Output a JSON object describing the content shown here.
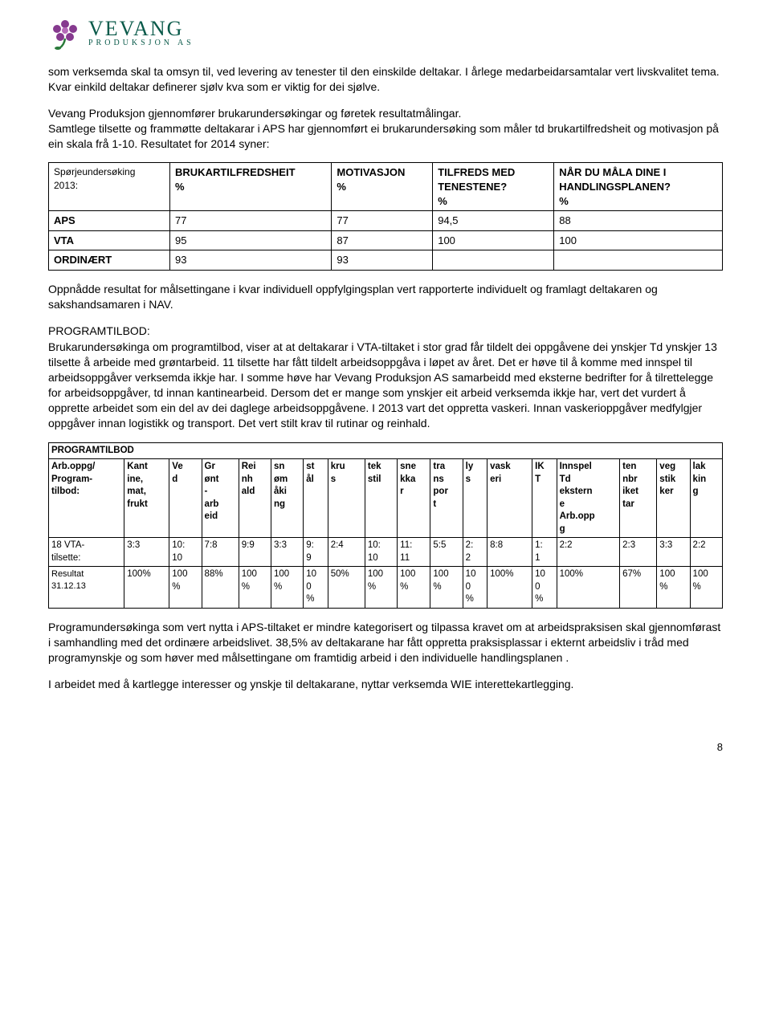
{
  "logo": {
    "main": "VEVANG",
    "sub": "PRODUKSJON AS",
    "flower_color": "#863a8f",
    "leaf_color": "#2a7a3a",
    "text_color": "#0a5a4a"
  },
  "paragraphs": {
    "p1": "som verksemda skal ta omsyn til, ved levering av tenester til den einskilde deltakar. I årlege medarbeidarsamtalar vert livskvalitet tema. Kvar einkild deltakar definerer sjølv kva som er viktig for dei sjølve.",
    "p2": "Vevang Produksjon gjennomfører brukarundersøkingar og føretek resultatmålingar.\nSamtlege tilsette og frammøtte deltakarar i APS har gjennomført ei brukarundersøking som måler td brukartilfredsheit og motivasjon på ein skala frå 1-10. Resultatet for 2014 syner:",
    "p3": "Oppnådde resultat for målsettingane i kvar individuell oppfylgingsplan vert rapporterte individuelt og framlagt deltakaren og sakshandsamaren i NAV.",
    "p4_heading": "PROGRAMTILBOD:",
    "p4": "Brukarundersøkinga om programtilbod, viser at at deltakarar i VTA-tiltaket i stor grad får tildelt dei oppgåvene dei ynskjer Td ynskjer 13 tilsette å arbeide med grøntarbeid. 11 tilsette har fått tildelt arbeidsoppgåva i løpet av året. Det er høve til å komme med innspel til arbeidsoppgåver verksemda ikkje har. I somme høve har Vevang Produksjon AS samarbeidd med eksterne bedrifter for å tilrettelegge for arbeidsoppgåver, td innan kantinearbeid. Dersom det er mange som ynskjer eit arbeid verksemda ikkje har, vert det vurdert å opprette arbeidet som ein del av dei daglege arbeidsoppgåvene. I 2013 vart det oppretta vaskeri. Innan vaskerioppgåver medfylgjer oppgåver innan logistikk og transport. Det vert stilt krav til rutinar og reinhald.",
    "p5": "Programundersøkinga som vert nytta i APS-tiltaket er mindre kategorisert og tilpassa kravet om at arbeidspraksisen skal gjennomførast i samhandling med det ordinære arbeidslivet. 38,5% av deltakarane har fått oppretta praksisplassar i ekternt arbeidsliv i tråd med programynskje og som høver med målsettingane om framtidig arbeid i den individuelle handlingsplanen .",
    "p6": "I arbeidet med å kartlegge interesser og ynskje til deltakarane, nyttar verksemda WIE interettekartlegging."
  },
  "table1": {
    "head": {
      "c0": "Spørjeundersøking\n2013:",
      "c1": "BRUKARTILFREDSHEIT\n%",
      "c2": "MOTIVASJON\n%",
      "c3": "TILFREDS MED\nTENESTENE?\n%",
      "c4": "NÅR DU MÅLA DINE I\nHANDLINGSPLANEN?\n%"
    },
    "rows": [
      {
        "c0": "APS",
        "c1": "77",
        "c2": "77",
        "c3": "94,5",
        "c4": "88"
      },
      {
        "c0": "VTA",
        "c1": "95",
        "c2": "87",
        "c3": "100",
        "c4": "100"
      },
      {
        "c0": "ORDINÆRT",
        "c1": "93",
        "c2": "93",
        "c3": "",
        "c4": ""
      }
    ]
  },
  "table2": {
    "title": "PROGRAMTILBOD",
    "head": [
      "Arb.oppg/\nProgram-\ntilbod:",
      "Kant\nine,\nmat,\nfrukt",
      "Ve\nd",
      "Gr\nønt\n-\narb\neid",
      "Rei\nnh\nald",
      "sn\nøm\nåki\nng",
      "st\nål",
      "kru\ns",
      "tek\nstil",
      "sne\nkka\nr",
      "tra\nns\npor\nt",
      "ly\ns",
      "vask\neri",
      "IK\nT",
      "Innspel\nTd\nekstern\ne\nArb.opp\ng",
      "ten\nnbr\niket\ntar",
      "veg\nstik\nker",
      "lak\nkin\ng"
    ],
    "rows": [
      [
        "18 VTA-\ntilsette:",
        "3:3",
        "10:\n10",
        "7:8",
        "9:9",
        "3:3",
        "9:\n9",
        "2:4",
        "10:\n10",
        "11:\n11",
        "5:5",
        "2:\n2",
        "8:8",
        "1:\n1",
        "2:2",
        "2:3",
        "3:3",
        "2:2"
      ],
      [
        "Resultat\n31.12.13",
        "100%",
        "100\n%",
        "88%",
        "100\n%",
        "100\n%",
        "10\n0\n%",
        "50%",
        "100\n%",
        "100\n%",
        "100\n%",
        "10\n0\n%",
        "100%",
        "10\n0\n%",
        "100%",
        "67%",
        "100\n%",
        "100\n%"
      ]
    ]
  },
  "page_number": "8"
}
